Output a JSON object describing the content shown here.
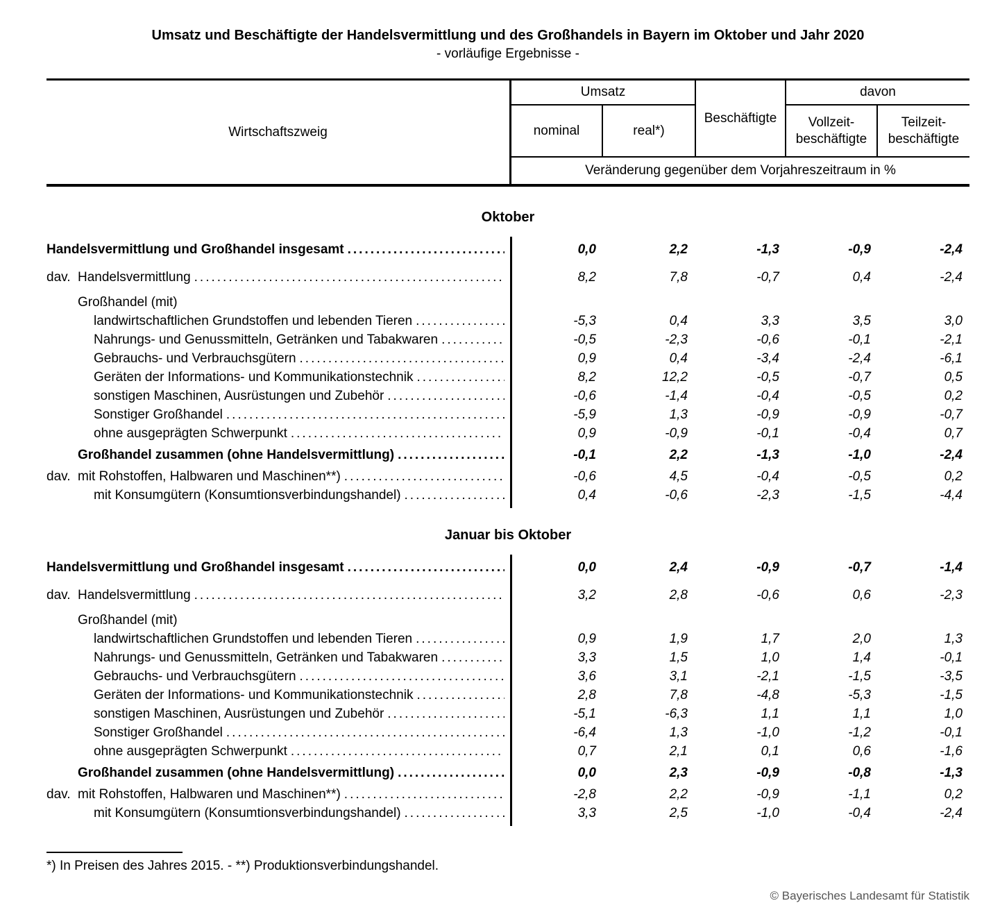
{
  "title": "Umsatz und Beschäftigte der Handelsvermittlung und des Großhandels in Bayern im Oktober und Jahr 2020",
  "subtitle": "- vorläufige Ergebnisse -",
  "table": {
    "header": {
      "wirtschaftszweig": "Wirtschaftszweig",
      "umsatz": "Umsatz",
      "beschaeftigte": "Beschäftigte",
      "davon": "davon",
      "nominal": "nominal",
      "real": "real*)",
      "vollzeit_line1": "Vollzeit-",
      "vollzeit_line2": "beschäftigte",
      "teilzeit_line1": "Teilzeit-",
      "teilzeit_line2": "beschäftigte",
      "unit_note": "Veränderung gegenüber dem Vorjahreszeitraum in %"
    },
    "sections": [
      {
        "heading": "Oktober",
        "rows": [
          {
            "bold": true,
            "indent": 0,
            "prefix": "",
            "label": "Handelsvermittlung und Großhandel insgesamt",
            "values": [
              "0,0",
              "2,2",
              "-1,3",
              "-0,9",
              "-2,4"
            ]
          },
          {
            "bold": false,
            "indent": 1,
            "prefix": "dav.",
            "label": "Handelsvermittlung",
            "values": [
              "8,2",
              "7,8",
              "-0,7",
              "0,4",
              "-2,4"
            ]
          },
          {
            "bold": false,
            "indent": 1,
            "prefix": "",
            "label": "Großhandel (mit)",
            "values": null
          },
          {
            "bold": false,
            "indent": 2,
            "prefix": "",
            "label": "landwirtschaftlichen Grundstoffen und lebenden Tieren",
            "values": [
              "-5,3",
              "0,4",
              "3,3",
              "3,5",
              "3,0"
            ]
          },
          {
            "bold": false,
            "indent": 2,
            "prefix": "",
            "label": "Nahrungs- und Genussmitteln, Getränken und Tabakwaren",
            "values": [
              "-0,5",
              "-2,3",
              "-0,6",
              "-0,1",
              "-2,1"
            ]
          },
          {
            "bold": false,
            "indent": 2,
            "prefix": "",
            "label": "Gebrauchs- und Verbrauchsgütern",
            "values": [
              "0,9",
              "0,4",
              "-3,4",
              "-2,4",
              "-6,1"
            ]
          },
          {
            "bold": false,
            "indent": 2,
            "prefix": "",
            "label": "Geräten der Informations- und Kommunikationstechnik",
            "values": [
              "8,2",
              "12,2",
              "-0,5",
              "-0,7",
              "0,5"
            ]
          },
          {
            "bold": false,
            "indent": 2,
            "prefix": "",
            "label": "sonstigen Maschinen, Ausrüstungen und Zubehör",
            "values": [
              "-0,6",
              "-1,4",
              "-0,4",
              "-0,5",
              "0,2"
            ]
          },
          {
            "bold": false,
            "indent": 2,
            "prefix": "",
            "label": "Sonstiger Großhandel",
            "values": [
              "-5,9",
              "1,3",
              "-0,9",
              "-0,9",
              "-0,7"
            ]
          },
          {
            "bold": false,
            "indent": 2,
            "prefix": "",
            "label": "ohne ausgeprägten Schwerpunkt",
            "values": [
              "0,9",
              "-0,9",
              "-0,1",
              "-0,4",
              "0,7"
            ]
          },
          {
            "bold": true,
            "indent": 1,
            "prefix": "",
            "label": "Großhandel zusammen (ohne Handelsvermittlung)",
            "values": [
              "-0,1",
              "2,2",
              "-1,3",
              "-1,0",
              "-2,4"
            ]
          },
          {
            "bold": false,
            "indent": 1,
            "prefix": "dav.",
            "label": "mit Rohstoffen, Halbwaren und Maschinen**)",
            "values": [
              "-0,6",
              "4,5",
              "-0,4",
              "-0,5",
              "0,2"
            ]
          },
          {
            "bold": false,
            "indent": 2,
            "prefix": "",
            "label": "mit Konsumgütern (Konsumtionsverbindungshandel)",
            "values": [
              "0,4",
              "-0,6",
              "-2,3",
              "-1,5",
              "-4,4"
            ]
          }
        ]
      },
      {
        "heading": "Januar bis Oktober",
        "rows": [
          {
            "bold": true,
            "indent": 0,
            "prefix": "",
            "label": "Handelsvermittlung und Großhandel insgesamt",
            "values": [
              "0,0",
              "2,4",
              "-0,9",
              "-0,7",
              "-1,4"
            ]
          },
          {
            "bold": false,
            "indent": 1,
            "prefix": "dav.",
            "label": "Handelsvermittlung",
            "values": [
              "3,2",
              "2,8",
              "-0,6",
              "0,6",
              "-2,3"
            ]
          },
          {
            "bold": false,
            "indent": 1,
            "prefix": "",
            "label": "Großhandel (mit)",
            "values": null
          },
          {
            "bold": false,
            "indent": 2,
            "prefix": "",
            "label": "landwirtschaftlichen Grundstoffen und lebenden Tieren",
            "values": [
              "0,9",
              "1,9",
              "1,7",
              "2,0",
              "1,3"
            ]
          },
          {
            "bold": false,
            "indent": 2,
            "prefix": "",
            "label": "Nahrungs- und Genussmitteln, Getränken und Tabakwaren",
            "values": [
              "3,3",
              "1,5",
              "1,0",
              "1,4",
              "-0,1"
            ]
          },
          {
            "bold": false,
            "indent": 2,
            "prefix": "",
            "label": "Gebrauchs- und Verbrauchsgütern",
            "values": [
              "3,6",
              "3,1",
              "-2,1",
              "-1,5",
              "-3,5"
            ]
          },
          {
            "bold": false,
            "indent": 2,
            "prefix": "",
            "label": "Geräten der Informations- und Kommunikationstechnik",
            "values": [
              "2,8",
              "7,8",
              "-4,8",
              "-5,3",
              "-1,5"
            ]
          },
          {
            "bold": false,
            "indent": 2,
            "prefix": "",
            "label": "sonstigen Maschinen, Ausrüstungen und Zubehör",
            "values": [
              "-5,1",
              "-6,3",
              "1,1",
              "1,1",
              "1,0"
            ]
          },
          {
            "bold": false,
            "indent": 2,
            "prefix": "",
            "label": "Sonstiger Großhandel",
            "values": [
              "-6,4",
              "1,3",
              "-1,0",
              "-1,2",
              "-0,1"
            ]
          },
          {
            "bold": false,
            "indent": 2,
            "prefix": "",
            "label": "ohne ausgeprägten Schwerpunkt",
            "values": [
              "0,7",
              "2,1",
              "0,1",
              "0,6",
              "-1,6"
            ]
          },
          {
            "bold": true,
            "indent": 1,
            "prefix": "",
            "label": "Großhandel zusammen (ohne Handelsvermittlung)",
            "values": [
              "0,0",
              "2,3",
              "-0,9",
              "-0,8",
              "-1,3"
            ]
          },
          {
            "bold": false,
            "indent": 1,
            "prefix": "dav.",
            "label": "mit Rohstoffen, Halbwaren und Maschinen**)",
            "values": [
              "-2,8",
              "2,2",
              "-0,9",
              "-1,1",
              "0,2"
            ]
          },
          {
            "bold": false,
            "indent": 2,
            "prefix": "",
            "label": "mit Konsumgütern (Konsumtionsverbindungshandel)",
            "values": [
              "3,3",
              "2,5",
              "-1,0",
              "-0,4",
              "-2,4"
            ]
          }
        ]
      }
    ]
  },
  "footnote": "*) In Preisen des Jahres 2015. - **) Produktionsverbindungshandel.",
  "copyright": "© Bayerisches Landesamt für Statistik"
}
